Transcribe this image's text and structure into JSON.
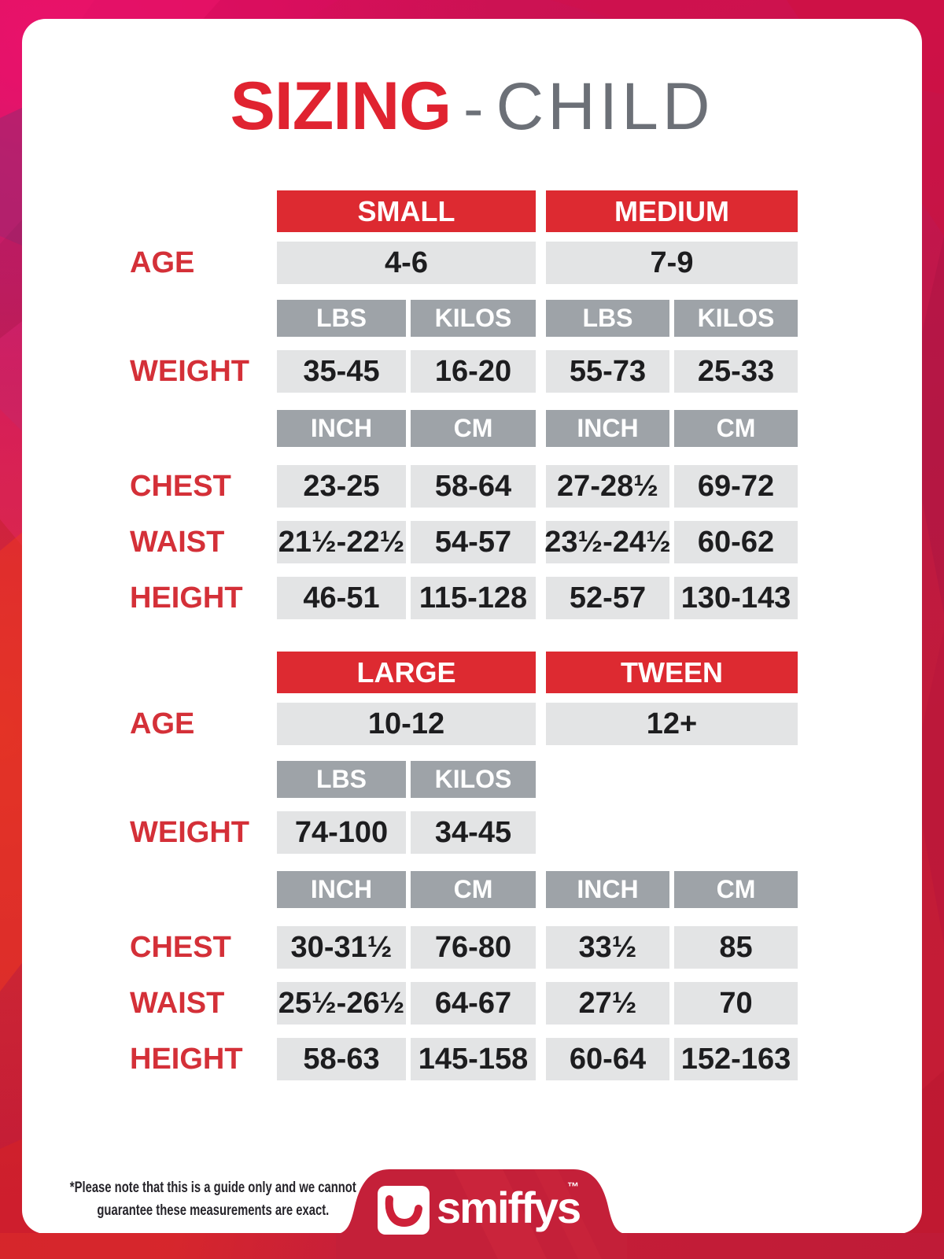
{
  "title": {
    "main": "SIZING",
    "separator": "-",
    "sub": "CHILD"
  },
  "tables": [
    {
      "name": "small-medium",
      "size_headers": [
        "SMALL",
        "MEDIUM"
      ],
      "age": {
        "label": "AGE",
        "values": [
          "4-6",
          "7-9"
        ]
      },
      "weight": {
        "label": "WEIGHT",
        "unit_headers": [
          "LBS",
          "KILOS",
          "LBS",
          "KILOS"
        ],
        "values": [
          "35-45",
          "16-20",
          "55-73",
          "25-33"
        ]
      },
      "body_unit_headers": [
        "INCH",
        "CM",
        "INCH",
        "CM"
      ],
      "body_rows": [
        {
          "label": "CHEST",
          "values": [
            "23-25",
            "58-64",
            "27-28½",
            "69-72"
          ]
        },
        {
          "label": "WAIST",
          "values": [
            "21½-22½",
            "54-57",
            "23½-24½",
            "60-62"
          ]
        },
        {
          "label": "HEIGHT",
          "values": [
            "46-51",
            "115-128",
            "52-57",
            "130-143"
          ]
        }
      ]
    },
    {
      "name": "large-tween",
      "size_headers": [
        "LARGE",
        "TWEEN"
      ],
      "age": {
        "label": "AGE",
        "values": [
          "10-12",
          "12+"
        ]
      },
      "weight": {
        "label": "WEIGHT",
        "unit_headers": [
          "LBS",
          "KILOS"
        ],
        "values": [
          "74-100",
          "34-45"
        ]
      },
      "body_unit_headers": [
        "INCH",
        "CM",
        "INCH",
        "CM"
      ],
      "body_rows": [
        {
          "label": "CHEST",
          "values": [
            "30-31½",
            "76-80",
            "33½",
            "85"
          ]
        },
        {
          "label": "WAIST",
          "values": [
            "25½-26½",
            "64-67",
            "27½",
            "70"
          ]
        },
        {
          "label": "HEIGHT",
          "values": [
            "58-63",
            "145-158",
            "60-64",
            "152-163"
          ]
        }
      ]
    }
  ],
  "footnote": {
    "line1": "*Please note that this is a guide only and we cannot",
    "line2": "guarantee these measurements are exact."
  },
  "logo": {
    "wordmark": "smiffys",
    "trademark": "™",
    "icon": "smile-icon"
  },
  "colors": {
    "title_red": "#E02330",
    "title_gray": "#6C7077",
    "header_red": "#DD2A31",
    "label_red": "#D43038",
    "unit_gray": "#9EA3A8",
    "cell_gray": "#E3E4E5",
    "brand_red": "#C42039"
  }
}
